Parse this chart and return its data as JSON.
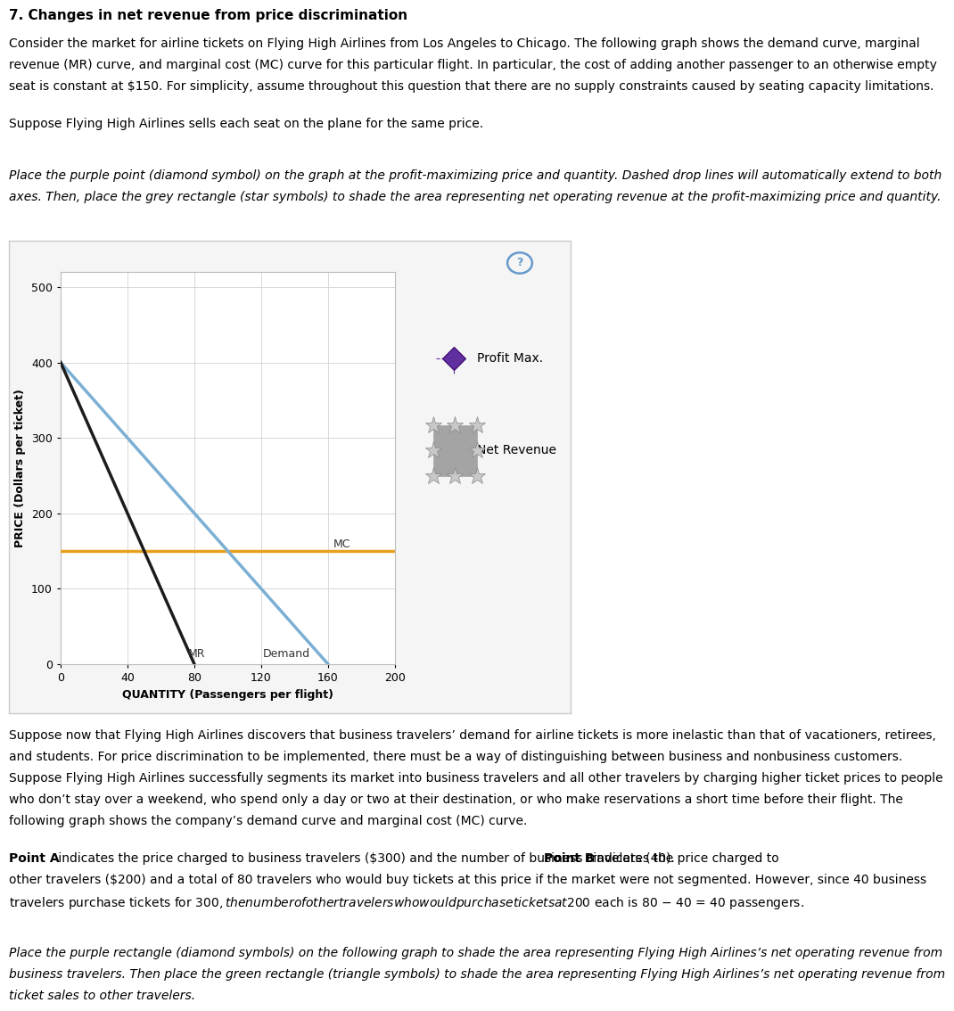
{
  "title": "7. Changes in net revenue from price discrimination",
  "para1_lines": [
    "Consider the market for airline tickets on Flying High Airlines from Los Angeles to Chicago. The following graph shows the demand curve, marginal",
    "revenue (MR) curve, and marginal cost (MC) curve for this particular flight. In particular, the cost of adding another passenger to an otherwise empty",
    "seat is constant at $150. For simplicity, assume throughout this question that there are no supply constraints caused by seating capacity limitations."
  ],
  "para2": "Suppose Flying High Airlines sells each seat on the plane for the same price.",
  "para3_lines": [
    "Place the purple point (diamond symbol) on the graph at the profit-maximizing price and quantity. Dashed drop lines will automatically extend to both",
    "axes. Then, place the grey rectangle (star symbols) to shade the area representing net operating revenue at the profit-maximizing price and quantity."
  ],
  "para4_lines": [
    "Suppose now that Flying High Airlines discovers that business travelers’ demand for airline tickets is more inelastic than that of vacationers, retirees,",
    "and students. For price discrimination to be implemented, there must be a way of distinguishing between business and nonbusiness customers.",
    "Suppose Flying High Airlines successfully segments its market into business travelers and all other travelers by charging higher ticket prices to people",
    "who don’t stay over a weekend, who spend only a day or two at their destination, or who make reservations a short time before their flight. The",
    "following graph shows the company’s demand curve and marginal cost (MC) curve."
  ],
  "para5_line1": " indicates the price charged to business travelers ($300) and the number of business travelers (40). ",
  "para5_line1b": " indicates the price charged to",
  "para5_line2": "other travelers ($200) and a total of 80 travelers who would buy tickets at this price if the market were not segmented. However, since 40 business",
  "para5_line3": "travelers purchase tickets for $300, the number of other travelers who would purchase tickets at $200 each is 80 − 40 = 40 passengers.",
  "para6_lines": [
    "Place the purple rectangle (diamond symbols) on the following graph to shade the area representing Flying High Airlines’s net operating revenue from",
    "business travelers. Then place the green rectangle (triangle symbols) to shade the area representing Flying High Airlines’s net operating revenue from",
    "ticket sales to other travelers."
  ],
  "demand_color": "#7bafd4",
  "mr_color": "#1c1c1c",
  "mc_color": "#e8a020",
  "profit_max_color": "#6030a0",
  "net_revenue_fill": "#909090",
  "star_color": "#c8c8c8",
  "star_edge": "#888888",
  "grid_color": "#d8d8d8",
  "panel_bg": "#f5f5f5",
  "panel_border": "#cccccc",
  "question_color": "#6699cc",
  "mc_y": 150,
  "demand_x0": 0,
  "demand_y0": 400,
  "demand_x1": 160,
  "demand_y1": 0,
  "mr_x0": 0,
  "mr_y0": 400,
  "mr_x1": 80,
  "mr_y1": 0,
  "x_min": 0,
  "x_max": 200,
  "y_min": 0,
  "y_max": 520,
  "x_ticks": [
    0,
    40,
    80,
    120,
    160,
    200
  ],
  "y_ticks": [
    0,
    100,
    200,
    300,
    400,
    500
  ],
  "xlabel": "QUANTITY (Passengers per flight)",
  "ylabel": "PRICE (Dollars per ticket)",
  "legend_profit_label": "Profit Max.",
  "legend_revenue_label": "Net Revenue",
  "fs": 10,
  "fs_axis": 9
}
